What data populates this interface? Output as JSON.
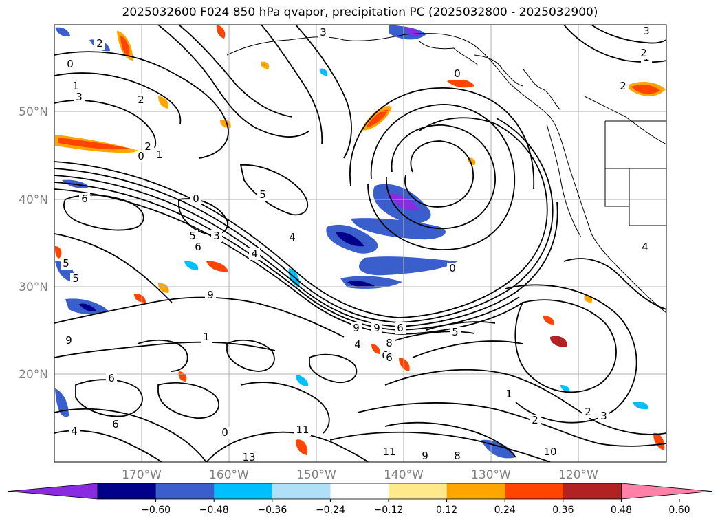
{
  "title": "2025032600 F024 850 hPa qvapor, precipitation PC (2025032800 - 2025032900)",
  "map": {
    "lat_ticks": [
      "50°N",
      "40°N",
      "30°N",
      "20°N"
    ],
    "lon_ticks": [
      "170°W",
      "160°W",
      "150°W",
      "140°W",
      "130°W",
      "120°W"
    ],
    "grid": true,
    "contour_color": "#000000",
    "contour_labels": [
      "3",
      "2",
      "0",
      "1",
      "3",
      "2",
      "1",
      "2",
      "0",
      "1",
      "6",
      "0",
      "5",
      "3",
      "6",
      "4",
      "0",
      "5",
      "4",
      "9",
      "9",
      "9",
      "6",
      "8",
      "6",
      "4",
      "5",
      "0",
      "2",
      "3",
      "1",
      "2",
      "9",
      "1",
      "6",
      "11",
      "13",
      "10",
      "11",
      "9",
      "8",
      "6",
      "4",
      "6",
      "5",
      "5",
      "0",
      "0",
      "3",
      "2",
      "4",
      "2"
    ]
  },
  "colorbar": {
    "ticks": [
      "−0.60",
      "−0.48",
      "−0.36",
      "−0.24",
      "−0.12",
      "0.12",
      "0.24",
      "0.36",
      "0.48",
      "0.60"
    ],
    "colors": [
      "#8a2be2",
      "#00008b",
      "#3a5fcd",
      "#00bfff",
      "#b0e0f8",
      "#ffffff",
      "#ffe98a",
      "#ffa500",
      "#ff4500",
      "#b22222",
      "#ff80a8"
    ]
  }
}
